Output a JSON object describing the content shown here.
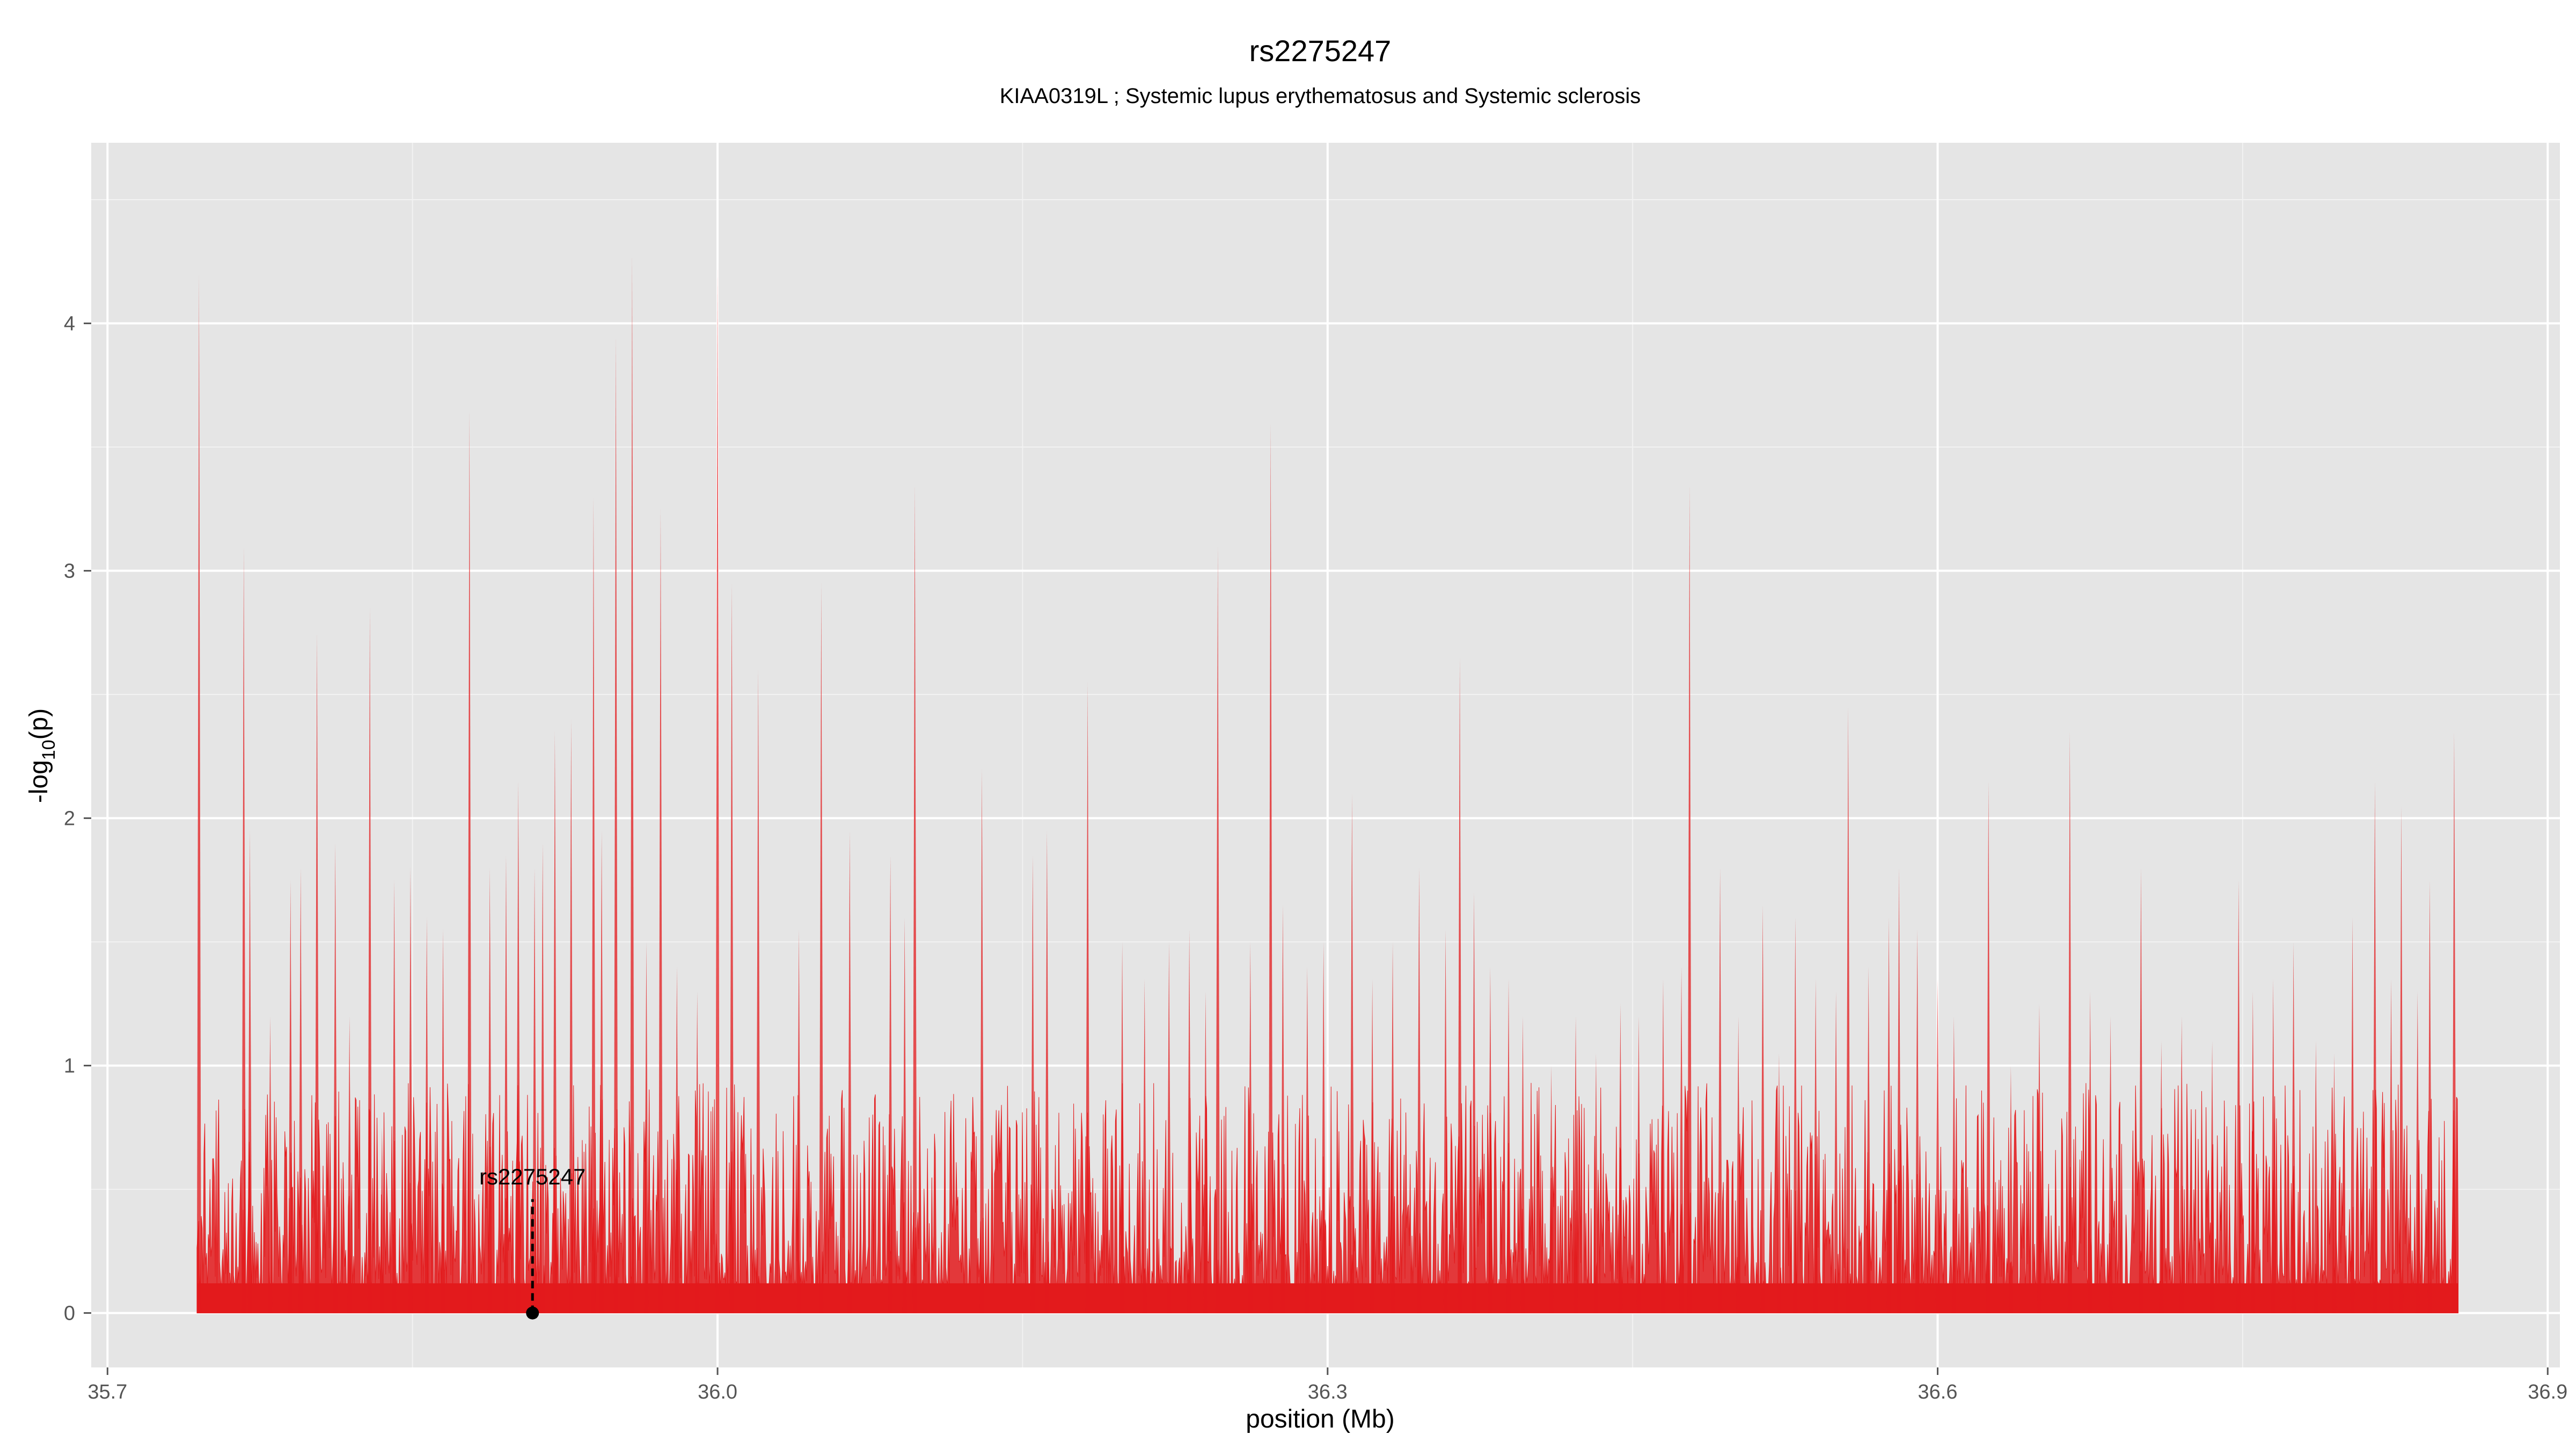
{
  "chart_data": {
    "type": "line",
    "title": "rs2275247",
    "subtitle": "KIAA0319L ; Systemic lupus erythematosus and Systemic sclerosis",
    "xlabel": "position (Mb)",
    "ylabel_main": "-log",
    "ylabel_sub": "10",
    "ylabel_tail": "(p)",
    "xlim": [
      35.692,
      36.906
    ],
    "ylim": [
      -0.22,
      4.73
    ],
    "xticks": [
      {
        "value": 35.7,
        "label": "35.7"
      },
      {
        "value": 36.0,
        "label": "36.0"
      },
      {
        "value": 36.3,
        "label": "36.3"
      },
      {
        "value": 36.6,
        "label": "36.6"
      },
      {
        "value": 36.9,
        "label": "36.9"
      }
    ],
    "yticks": [
      {
        "value": 0,
        "label": "0"
      },
      {
        "value": 1,
        "label": "1"
      },
      {
        "value": 2,
        "label": "2"
      },
      {
        "value": 3,
        "label": "3"
      },
      {
        "value": 4,
        "label": "4"
      }
    ],
    "grid": true,
    "background": "#e5e5e5",
    "colors": {
      "primary": "#e31a1c",
      "secondary": "#ff7f00",
      "marker": "#000000"
    },
    "series_range_x": [
      35.744,
      36.856
    ],
    "highlight": {
      "label": "rs2275247",
      "x": 35.909,
      "y": 0
    },
    "peaks": [
      {
        "x": 35.745,
        "y": 4.2
      },
      {
        "x": 35.767,
        "y": 3.1
      },
      {
        "x": 35.77,
        "y": 1.95
      },
      {
        "x": 35.78,
        "y": 1.2
      },
      {
        "x": 35.79,
        "y": 1.75
      },
      {
        "x": 35.795,
        "y": 1.8
      },
      {
        "x": 35.803,
        "y": 2.75
      },
      {
        "x": 35.812,
        "y": 1.9
      },
      {
        "x": 35.819,
        "y": 1.2
      },
      {
        "x": 35.829,
        "y": 2.85
      },
      {
        "x": 35.835,
        "y": 0.75
      },
      {
        "x": 35.841,
        "y": 1.75
      },
      {
        "x": 35.849,
        "y": 1.8
      },
      {
        "x": 35.857,
        "y": 1.6
      },
      {
        "x": 35.865,
        "y": 1.55
      },
      {
        "x": 35.878,
        "y": 3.65
      },
      {
        "x": 35.888,
        "y": 1.8
      },
      {
        "x": 35.896,
        "y": 1.85
      },
      {
        "x": 35.902,
        "y": 2.15
      },
      {
        "x": 35.91,
        "y": 1.8
      },
      {
        "x": 35.914,
        "y": 1.9
      },
      {
        "x": 35.92,
        "y": 2.35
      },
      {
        "x": 35.928,
        "y": 2.4
      },
      {
        "x": 35.939,
        "y": 3.3
      },
      {
        "x": 35.943,
        "y": 1.95
      },
      {
        "x": 35.95,
        "y": 3.95
      },
      {
        "x": 35.958,
        "y": 4.28
      },
      {
        "x": 35.965,
        "y": 1.5
      },
      {
        "x": 35.972,
        "y": 3.25
      },
      {
        "x": 35.98,
        "y": 1.4
      },
      {
        "x": 35.99,
        "y": 1.3
      },
      {
        "x": 36.0,
        "y": 4.25
      },
      {
        "x": 36.007,
        "y": 2.95
      },
      {
        "x": 36.02,
        "y": 2.6
      },
      {
        "x": 36.04,
        "y": 1.55
      },
      {
        "x": 36.051,
        "y": 2.95
      },
      {
        "x": 36.065,
        "y": 1.95
      },
      {
        "x": 36.085,
        "y": 1.85
      },
      {
        "x": 36.092,
        "y": 1.6
      },
      {
        "x": 36.097,
        "y": 3.35
      },
      {
        "x": 36.13,
        "y": 2.2
      },
      {
        "x": 36.155,
        "y": 1.85
      },
      {
        "x": 36.162,
        "y": 1.95
      },
      {
        "x": 36.182,
        "y": 2.55
      },
      {
        "x": 36.199,
        "y": 1.5
      },
      {
        "x": 36.21,
        "y": 1.35
      },
      {
        "x": 36.222,
        "y": 1.5
      },
      {
        "x": 36.232,
        "y": 1.55
      },
      {
        "x": 36.24,
        "y": 1.3
      },
      {
        "x": 36.246,
        "y": 3.1
      },
      {
        "x": 36.262,
        "y": 1.5
      },
      {
        "x": 36.272,
        "y": 3.6
      },
      {
        "x": 36.278,
        "y": 1.65
      },
      {
        "x": 36.29,
        "y": 1.4
      },
      {
        "x": 36.298,
        "y": 1.5
      },
      {
        "x": 36.312,
        "y": 2.1
      },
      {
        "x": 36.322,
        "y": 1.35
      },
      {
        "x": 36.332,
        "y": 1.5
      },
      {
        "x": 36.345,
        "y": 1.8
      },
      {
        "x": 36.358,
        "y": 1.55
      },
      {
        "x": 36.365,
        "y": 2.65
      },
      {
        "x": 36.372,
        "y": 1.7
      },
      {
        "x": 36.38,
        "y": 1.4
      },
      {
        "x": 36.389,
        "y": 1.35
      },
      {
        "x": 36.396,
        "y": 1.2
      },
      {
        "x": 36.41,
        "y": 1.0
      },
      {
        "x": 36.422,
        "y": 1.2
      },
      {
        "x": 36.432,
        "y": 1.05
      },
      {
        "x": 36.444,
        "y": 1.25
      },
      {
        "x": 36.453,
        "y": 1.2
      },
      {
        "x": 36.465,
        "y": 1.35
      },
      {
        "x": 36.474,
        "y": 1.4
      },
      {
        "x": 36.478,
        "y": 3.35
      },
      {
        "x": 36.493,
        "y": 1.8
      },
      {
        "x": 36.502,
        "y": 1.2
      },
      {
        "x": 36.514,
        "y": 1.65
      },
      {
        "x": 36.522,
        "y": 1.05
      },
      {
        "x": 36.53,
        "y": 1.6
      },
      {
        "x": 36.54,
        "y": 1.35
      },
      {
        "x": 36.55,
        "y": 1.3
      },
      {
        "x": 36.556,
        "y": 2.45
      },
      {
        "x": 36.566,
        "y": 1.4
      },
      {
        "x": 36.576,
        "y": 1.6
      },
      {
        "x": 36.581,
        "y": 1.8
      },
      {
        "x": 36.59,
        "y": 1.55
      },
      {
        "x": 36.6,
        "y": 1.35
      },
      {
        "x": 36.608,
        "y": 1.2
      },
      {
        "x": 36.625,
        "y": 2.15
      },
      {
        "x": 36.636,
        "y": 1.0
      },
      {
        "x": 36.65,
        "y": 1.25
      },
      {
        "x": 36.665,
        "y": 2.35
      },
      {
        "x": 36.675,
        "y": 1.3
      },
      {
        "x": 36.685,
        "y": 1.2
      },
      {
        "x": 36.7,
        "y": 1.8
      },
      {
        "x": 36.71,
        "y": 1.1
      },
      {
        "x": 36.72,
        "y": 1.2
      },
      {
        "x": 36.735,
        "y": 1.1
      },
      {
        "x": 36.748,
        "y": 1.75
      },
      {
        "x": 36.755,
        "y": 1.3
      },
      {
        "x": 36.765,
        "y": 1.35
      },
      {
        "x": 36.775,
        "y": 1.5
      },
      {
        "x": 36.786,
        "y": 1.1
      },
      {
        "x": 36.795,
        "y": 1.05
      },
      {
        "x": 36.804,
        "y": 1.6
      },
      {
        "x": 36.815,
        "y": 2.15
      },
      {
        "x": 36.823,
        "y": 1.35
      },
      {
        "x": 36.828,
        "y": 2.05
      },
      {
        "x": 36.836,
        "y": 1.3
      },
      {
        "x": 36.842,
        "y": 1.75
      },
      {
        "x": 36.854,
        "y": 2.35
      }
    ]
  }
}
